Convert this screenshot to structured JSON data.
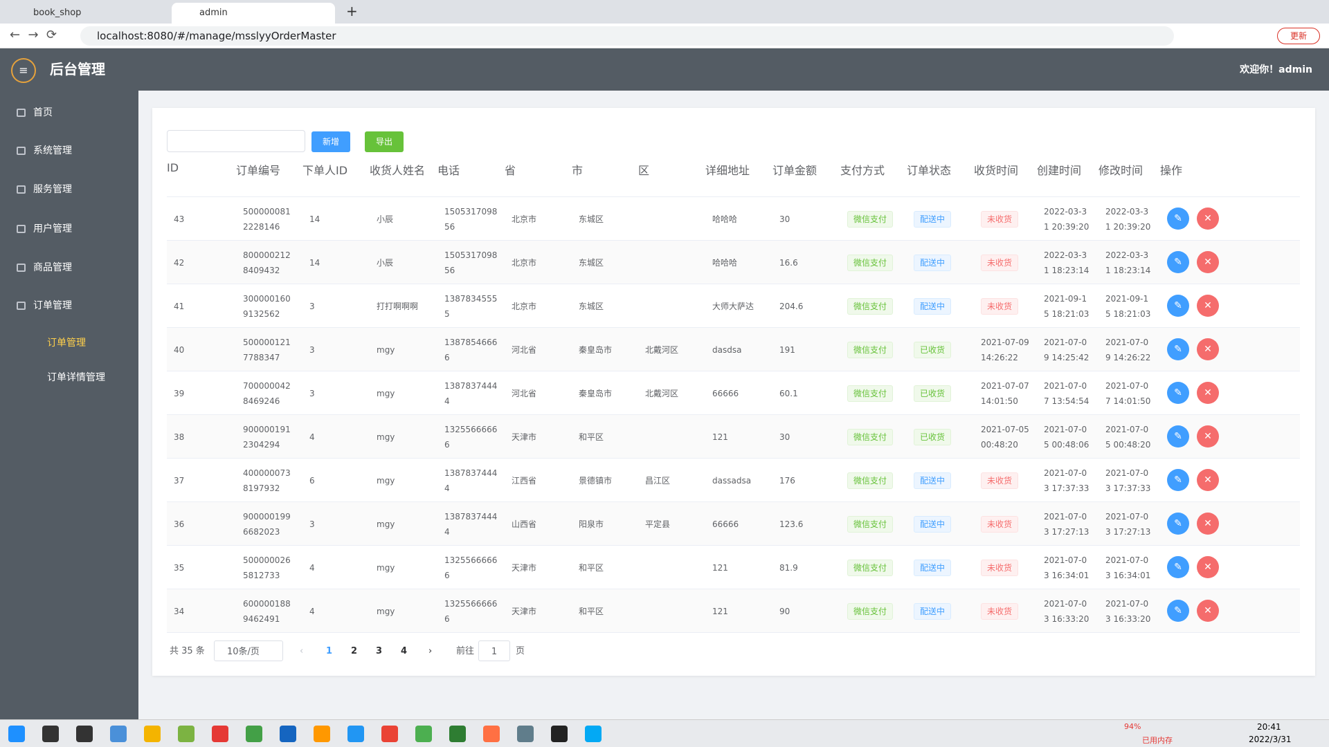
{
  "browser": {
    "tabs": [
      "book_shop",
      "admin"
    ],
    "url": "localhost:8080/#/manage/msslyyOrderMaster",
    "update_button": "更新"
  },
  "header": {
    "title": "后台管理",
    "greeting": "欢迎你！admin"
  },
  "sidebar": {
    "items": [
      "首页",
      "系统管理",
      "服务管理",
      "用户管理",
      "商品管理",
      "订单管理"
    ],
    "sub_items": [
      "订单管理",
      "订单详情管理"
    ]
  },
  "toolbar": {
    "add": "新增",
    "export": "导出"
  },
  "table": {
    "columns": [
      "ID",
      "订单编号",
      "下单人ID",
      "收货人姓名",
      "电话",
      "省",
      "市",
      "区",
      "详细地址",
      "订单金额",
      "支付方式",
      "订单状态",
      "收货时间",
      "创建时间",
      "修改时间",
      "操作"
    ],
    "rows": [
      [
        43,
        "5000000812228146",
        14,
        "小辰",
        "150531709856",
        "北京市",
        "东城区",
        null,
        "哈哈哈",
        30,
        "微信支付",
        "配送中",
        "未收货",
        "2022-03-31 20:39:20",
        "2022-03-31 20:39:20"
      ],
      [
        42,
        "8000002128409432",
        14,
        "小辰",
        "150531709856",
        "北京市",
        "东城区",
        null,
        "哈哈哈",
        16.6,
        "微信支付",
        "配送中",
        "未收货",
        "2022-03-31 18:23:14",
        "2022-03-31 18:23:14"
      ],
      [
        41,
        "3000001609132562",
        3,
        "打打啊啊啊",
        "13878345555",
        "北京市",
        "东城区",
        null,
        "大师大萨达",
        204.6,
        "微信支付",
        "配送中",
        "未收货",
        "2021-09-15 18:21:03",
        "2021-09-15 18:21:03"
      ],
      [
        40,
        "5000001217788347",
        3,
        "mgy",
        "13878546666",
        "河北省",
        "秦皇岛市",
        "北戴河区",
        "dasdsa",
        191,
        "微信支付",
        "已收货",
        "2021-07-09 14:26:22",
        "2021-07-09 14:25:42",
        "2021-07-09 14:26:22"
      ],
      [
        39,
        "7000000428469246",
        3,
        "mgy",
        "13878374444",
        "河北省",
        "秦皇岛市",
        "北戴河区",
        "66666",
        60.1,
        "微信支付",
        "已收货",
        "2021-07-07 14:01:50",
        "2021-07-07 13:54:54",
        "2021-07-07 14:01:50"
      ],
      [
        38,
        "9000001912304294",
        4,
        "mgy",
        "13255666666",
        "天津市",
        "和平区",
        null,
        "121",
        30,
        "微信支付",
        "已收货",
        "2021-07-05 00:48:20",
        "2021-07-05 00:48:06",
        "2021-07-05 00:48:20"
      ],
      [
        37,
        "4000000738197932",
        6,
        "mgy",
        "13878374444",
        "江西省",
        "景德镇市",
        "昌江区",
        "dassadsa",
        176,
        "微信支付",
        "配送中",
        "未收货",
        "2021-07-03 17:37:33",
        "2021-07-03 17:37:33"
      ],
      [
        36,
        "9000001996682023",
        3,
        "mgy",
        "13878374444",
        "山西省",
        "阳泉市",
        "平定县",
        "66666",
        123.6,
        "微信支付",
        "配送中",
        "未收货",
        "2021-07-03 17:27:13",
        "2021-07-03 17:27:13"
      ],
      [
        35,
        "5000000265812733",
        4,
        "mgy",
        "13255666666",
        "天津市",
        "和平区",
        null,
        "121",
        81.9,
        "微信支付",
        "配送中",
        "未收货",
        "2021-07-03 16:34:01",
        "2021-07-03 16:34:01"
      ],
      [
        34,
        "6000001889462491",
        4,
        "mgy",
        "13255666666",
        "天津市",
        "和平区",
        null,
        "121",
        90,
        "微信支付",
        "配送中",
        "未收货",
        "2021-07-03 16:33:20",
        "2021-07-03 16:33:20"
      ]
    ]
  },
  "pagination": {
    "total": "共 35 条",
    "page_size": "10条/页",
    "pages": [
      1,
      2,
      3,
      4
    ],
    "goto_prefix": "前往",
    "goto_value": 1,
    "goto_suffix": "页"
  },
  "taskbar": {
    "battery": "94%",
    "memory": "已用内存",
    "time": "20:41",
    "date": "2022/3/31"
  }
}
